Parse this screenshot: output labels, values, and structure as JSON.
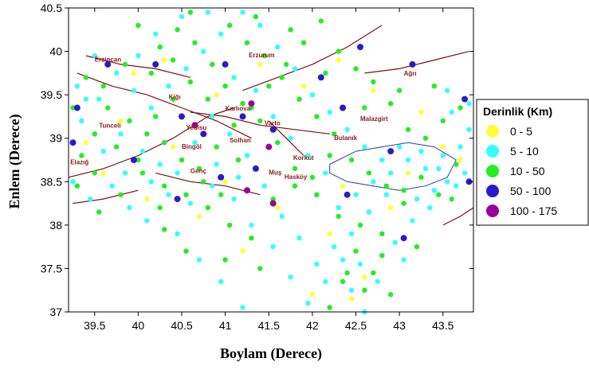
{
  "chart_data": {
    "type": "scatter",
    "title": "",
    "xlabel": "Boylam (Derece)",
    "ylabel": "Enlem (Derece)",
    "xlim": [
      39.2,
      43.85
    ],
    "ylim": [
      37.0,
      40.5
    ],
    "x_ticks": [
      "39.5",
      "40",
      "40.5",
      "41",
      "41.5",
      "42",
      "42.5",
      "43",
      "43.5"
    ],
    "y_ticks": [
      "37",
      "37.5",
      "38",
      "38.5",
      "39",
      "39.5",
      "40",
      "40.5"
    ],
    "grid": false,
    "legend_placement": "right",
    "legend": {
      "title": "Derinlik (Km)",
      "entries": [
        {
          "label": "0  - 5",
          "color": "#ffff33"
        },
        {
          "label": "5  - 10",
          "color": "#33ffff"
        },
        {
          "label": "10  - 50",
          "color": "#22ee22"
        },
        {
          "label": "50  - 100",
          "color": "#2a1acc"
        },
        {
          "label": "100  - 175",
          "color": "#990099"
        }
      ]
    },
    "cities": [
      {
        "name": "Erzincan",
        "x": 39.5,
        "y": 39.88
      },
      {
        "name": "Erzurum",
        "x": 41.27,
        "y": 39.93
      },
      {
        "name": "Ağrı",
        "x": 43.05,
        "y": 39.72
      },
      {
        "name": "Kiğı",
        "x": 40.35,
        "y": 39.45
      },
      {
        "name": "Karlıova",
        "x": 41.0,
        "y": 39.32
      },
      {
        "name": "Tunceli",
        "x": 39.55,
        "y": 39.12
      },
      {
        "name": "Yedisu",
        "x": 40.55,
        "y": 39.1
      },
      {
        "name": "Varto",
        "x": 41.45,
        "y": 39.15
      },
      {
        "name": "Malazgirt",
        "x": 42.55,
        "y": 39.2
      },
      {
        "name": "Bulanık",
        "x": 42.25,
        "y": 38.98
      },
      {
        "name": "Bingöl",
        "x": 40.5,
        "y": 38.88
      },
      {
        "name": "Solhan",
        "x": 41.05,
        "y": 38.95
      },
      {
        "name": "Korkut",
        "x": 41.78,
        "y": 38.75
      },
      {
        "name": "Elazığ",
        "x": 39.22,
        "y": 38.7
      },
      {
        "name": "Genç",
        "x": 40.6,
        "y": 38.6
      },
      {
        "name": "Muş",
        "x": 41.5,
        "y": 38.58
      },
      {
        "name": "Hasköy",
        "x": 41.68,
        "y": 38.53
      }
    ],
    "series": [
      {
        "name": "0  - 5",
        "points": [
          [
            39.95,
            39.75
          ],
          [
            40.3,
            39.9
          ],
          [
            40.9,
            39.5
          ],
          [
            41.4,
            39.85
          ],
          [
            41.9,
            39.6
          ],
          [
            42.3,
            39.9
          ],
          [
            42.7,
            39.55
          ],
          [
            43.25,
            39.3
          ],
          [
            39.6,
            38.6
          ],
          [
            40.1,
            38.3
          ],
          [
            40.7,
            38.1
          ],
          [
            41.6,
            38.2
          ],
          [
            42.2,
            37.9
          ],
          [
            42.6,
            37.4
          ],
          [
            43.1,
            38.6
          ],
          [
            43.5,
            38.9
          ],
          [
            42.0,
            37.2
          ],
          [
            41.2,
            37.7
          ],
          [
            39.8,
            39.2
          ],
          [
            42.9,
            38.2
          ],
          [
            40.4,
            38.9
          ],
          [
            41.0,
            38.5
          ],
          [
            42.35,
            38.45
          ],
          [
            39.4,
            38.95
          ],
          [
            43.7,
            38.75
          ],
          [
            42.45,
            37.15
          ]
        ]
      },
      {
        "name": "5  - 10",
        "points": [
          [
            39.3,
            39.6
          ],
          [
            39.55,
            39.45
          ],
          [
            39.8,
            39.05
          ],
          [
            40.05,
            38.85
          ],
          [
            40.25,
            38.7
          ],
          [
            40.45,
            38.6
          ],
          [
            40.65,
            38.95
          ],
          [
            40.85,
            39.25
          ],
          [
            41.05,
            39.05
          ],
          [
            41.25,
            38.8
          ],
          [
            41.45,
            38.45
          ],
          [
            41.65,
            38.1
          ],
          [
            41.85,
            37.85
          ],
          [
            42.05,
            37.55
          ],
          [
            42.3,
            38.2
          ],
          [
            42.5,
            38.35
          ],
          [
            42.7,
            38.5
          ],
          [
            42.9,
            38.6
          ],
          [
            43.1,
            38.75
          ],
          [
            43.3,
            38.65
          ],
          [
            43.5,
            38.8
          ],
          [
            43.7,
            38.9
          ],
          [
            43.8,
            39.1
          ],
          [
            43.6,
            39.3
          ],
          [
            43.4,
            38.4
          ],
          [
            43.2,
            38.3
          ],
          [
            43.0,
            38.9
          ],
          [
            42.8,
            38.75
          ],
          [
            42.6,
            38.9
          ],
          [
            42.4,
            39.1
          ],
          [
            42.2,
            39.3
          ],
          [
            42.0,
            39.5
          ],
          [
            41.8,
            39.8
          ],
          [
            41.6,
            40.05
          ],
          [
            41.4,
            40.3
          ],
          [
            41.2,
            40.45
          ],
          [
            40.95,
            40.2
          ],
          [
            40.75,
            40.0
          ],
          [
            40.55,
            39.8
          ],
          [
            40.35,
            39.6
          ],
          [
            40.15,
            39.35
          ],
          [
            39.95,
            39.55
          ],
          [
            39.75,
            39.75
          ],
          [
            39.5,
            39.95
          ],
          [
            39.35,
            39.2
          ],
          [
            39.25,
            38.5
          ],
          [
            39.45,
            38.3
          ],
          [
            39.7,
            38.45
          ],
          [
            39.9,
            38.2
          ],
          [
            40.15,
            38.5
          ],
          [
            40.35,
            38.35
          ],
          [
            40.6,
            38.25
          ],
          [
            40.85,
            38.45
          ],
          [
            41.1,
            38.3
          ],
          [
            41.3,
            38.0
          ],
          [
            41.55,
            37.75
          ],
          [
            41.75,
            37.4
          ],
          [
            41.95,
            37.1
          ],
          [
            42.15,
            37.35
          ],
          [
            42.35,
            37.6
          ],
          [
            42.55,
            37.55
          ],
          [
            42.75,
            37.35
          ],
          [
            42.95,
            37.8
          ],
          [
            43.15,
            38.05
          ],
          [
            43.35,
            38.2
          ],
          [
            43.55,
            38.5
          ],
          [
            43.75,
            38.6
          ],
          [
            43.65,
            38.45
          ],
          [
            43.45,
            38.65
          ],
          [
            43.25,
            38.85
          ],
          [
            42.85,
            38.35
          ],
          [
            42.65,
            38.15
          ],
          [
            42.45,
            37.9
          ],
          [
            42.25,
            37.75
          ],
          [
            40.0,
            39.95
          ],
          [
            40.2,
            40.2
          ],
          [
            40.5,
            40.4
          ],
          [
            40.8,
            40.45
          ],
          [
            41.1,
            39.7
          ],
          [
            41.35,
            39.55
          ],
          [
            41.55,
            39.25
          ],
          [
            41.75,
            39.0
          ],
          [
            41.95,
            38.8
          ],
          [
            42.15,
            38.6
          ],
          [
            39.6,
            38.85
          ],
          [
            39.85,
            38.6
          ],
          [
            40.1,
            38.05
          ],
          [
            40.45,
            37.9
          ],
          [
            40.7,
            37.6
          ],
          [
            40.95,
            37.35
          ],
          [
            41.2,
            37.05
          ],
          [
            42.45,
            37.25
          ],
          [
            42.6,
            37.0
          ],
          [
            43.05,
            37.6
          ],
          [
            39.4,
            39.45
          ],
          [
            40.9,
            38.7
          ],
          [
            41.15,
            38.55
          ],
          [
            43.8,
            39.4
          ],
          [
            43.55,
            39.55
          ]
        ]
      },
      {
        "name": "10  - 50",
        "points": [
          [
            39.4,
            39.7
          ],
          [
            39.65,
            39.35
          ],
          [
            39.9,
            39.2
          ],
          [
            40.1,
            39.05
          ],
          [
            40.3,
            38.95
          ],
          [
            40.5,
            38.75
          ],
          [
            40.7,
            38.65
          ],
          [
            40.9,
            38.9
          ],
          [
            41.1,
            39.15
          ],
          [
            41.3,
            39.35
          ],
          [
            41.5,
            39.6
          ],
          [
            41.7,
            39.85
          ],
          [
            41.9,
            40.1
          ],
          [
            42.1,
            40.35
          ],
          [
            42.3,
            40.0
          ],
          [
            42.5,
            39.8
          ],
          [
            42.7,
            39.65
          ],
          [
            42.9,
            39.4
          ],
          [
            43.1,
            39.1
          ],
          [
            43.3,
            39.0
          ],
          [
            43.5,
            39.2
          ],
          [
            43.7,
            39.35
          ],
          [
            39.3,
            38.45
          ],
          [
            39.55,
            38.15
          ],
          [
            39.8,
            38.35
          ],
          [
            40.05,
            38.6
          ],
          [
            40.3,
            38.45
          ],
          [
            40.55,
            38.35
          ],
          [
            40.8,
            38.2
          ],
          [
            41.05,
            38.0
          ],
          [
            41.3,
            37.85
          ],
          [
            41.55,
            38.3
          ],
          [
            41.8,
            38.45
          ],
          [
            42.05,
            38.35
          ],
          [
            42.3,
            38.1
          ],
          [
            42.55,
            38.0
          ],
          [
            42.8,
            37.9
          ],
          [
            43.05,
            38.4
          ],
          [
            43.25,
            38.55
          ],
          [
            43.45,
            38.35
          ],
          [
            43.65,
            38.7
          ],
          [
            42.4,
            37.45
          ],
          [
            42.6,
            37.25
          ],
          [
            42.8,
            37.65
          ],
          [
            42.2,
            37.05
          ],
          [
            40.0,
            40.3
          ],
          [
            40.25,
            40.05
          ],
          [
            40.45,
            40.25
          ],
          [
            40.65,
            40.1
          ],
          [
            40.85,
            39.85
          ],
          [
            41.05,
            40.3
          ],
          [
            41.25,
            40.1
          ],
          [
            41.45,
            39.95
          ],
          [
            41.65,
            39.7
          ],
          [
            41.85,
            39.45
          ],
          [
            42.05,
            39.25
          ],
          [
            42.25,
            39.05
          ],
          [
            42.45,
            38.75
          ],
          [
            42.65,
            38.6
          ],
          [
            42.85,
            38.45
          ],
          [
            43.05,
            38.25
          ],
          [
            39.5,
            39.05
          ],
          [
            39.75,
            38.9
          ],
          [
            40.0,
            38.75
          ],
          [
            40.2,
            39.25
          ],
          [
            40.4,
            39.45
          ],
          [
            40.6,
            39.65
          ],
          [
            40.8,
            39.45
          ],
          [
            41.0,
            39.6
          ],
          [
            41.2,
            39.4
          ],
          [
            41.4,
            39.2
          ],
          [
            41.6,
            38.95
          ],
          [
            41.8,
            38.65
          ],
          [
            42.0,
            38.55
          ],
          [
            42.2,
            38.8
          ],
          [
            39.35,
            38.8
          ],
          [
            39.6,
            39.6
          ],
          [
            39.85,
            39.85
          ],
          [
            40.15,
            39.75
          ],
          [
            40.4,
            39.9
          ],
          [
            40.6,
            40.45
          ],
          [
            41.35,
            40.4
          ],
          [
            41.75,
            40.25
          ],
          [
            42.15,
            39.75
          ],
          [
            42.6,
            39.35
          ],
          [
            43.0,
            39.55
          ],
          [
            43.4,
            39.6
          ],
          [
            42.35,
            37.35
          ],
          [
            42.5,
            37.7
          ],
          [
            42.7,
            37.45
          ],
          [
            42.9,
            37.2
          ],
          [
            40.55,
            37.7
          ],
          [
            40.3,
            37.95
          ],
          [
            41.0,
            37.6
          ],
          [
            41.4,
            37.5
          ],
          [
            43.6,
            38.3
          ],
          [
            43.2,
            37.75
          ],
          [
            39.25,
            39.35
          ],
          [
            40.75,
            38.5
          ],
          [
            41.15,
            38.75
          ],
          [
            40.25,
            38.2
          ],
          [
            39.5,
            38.6
          ],
          [
            40.95,
            38.35
          ]
        ]
      },
      {
        "name": "50  - 100",
        "points": [
          [
            39.3,
            39.35
          ],
          [
            39.65,
            39.85
          ],
          [
            40.2,
            39.85
          ],
          [
            40.5,
            39.25
          ],
          [
            40.75,
            39.05
          ],
          [
            40.95,
            38.55
          ],
          [
            41.2,
            39.25
          ],
          [
            41.55,
            39.1
          ],
          [
            42.1,
            39.7
          ],
          [
            42.55,
            40.05
          ],
          [
            43.15,
            39.85
          ],
          [
            43.75,
            39.45
          ],
          [
            43.8,
            38.5
          ],
          [
            42.9,
            38.85
          ],
          [
            42.4,
            38.35
          ],
          [
            41.35,
            38.65
          ],
          [
            40.45,
            38.3
          ],
          [
            39.95,
            38.75
          ],
          [
            43.05,
            37.85
          ],
          [
            39.25,
            38.95
          ],
          [
            42.35,
            39.35
          ],
          [
            41.0,
            39.85
          ]
        ]
      },
      {
        "name": "100  - 175",
        "points": [
          [
            41.3,
            39.4
          ],
          [
            41.5,
            38.9
          ],
          [
            41.25,
            38.4
          ],
          [
            41.55,
            38.25
          ],
          [
            40.65,
            39.15
          ]
        ]
      }
    ]
  }
}
